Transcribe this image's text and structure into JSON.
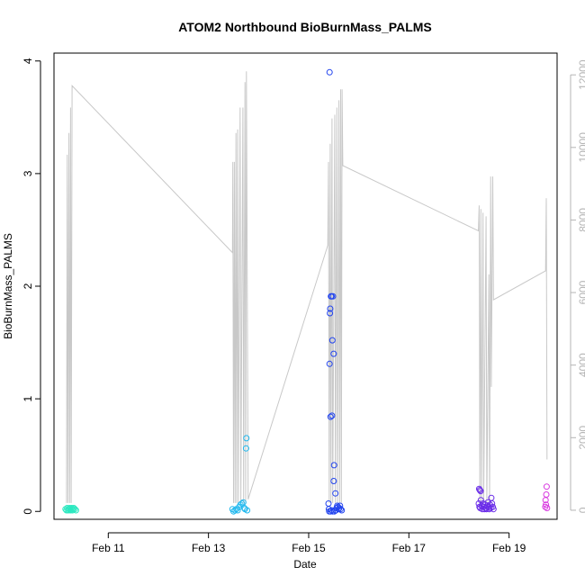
{
  "chart_data": {
    "type": "scatter",
    "title": "ATOM2 Northbound BioBurnMass_PALMS",
    "xlabel": "Date",
    "ylabel": "BioBurnMass_PALMS",
    "xlim": [
      "2017-02-09T22:00",
      "2017-02-19T23:00"
    ],
    "ylim": [
      -0.07,
      4.07
    ],
    "y2lim": [
      -250,
      12600
    ],
    "x_ticks": [
      {
        "value": "2017-02-11T00:00",
        "label": "Feb 11"
      },
      {
        "value": "2017-02-13T00:00",
        "label": "Feb 13"
      },
      {
        "value": "2017-02-15T00:00",
        "label": "Feb 15"
      },
      {
        "value": "2017-02-17T00:00",
        "label": "Feb 17"
      },
      {
        "value": "2017-02-19T00:00",
        "label": "Feb 19"
      }
    ],
    "y_ticks": [
      "0",
      "1",
      "2",
      "3",
      "4"
    ],
    "y2_ticks": [
      "0",
      "2000",
      "4000",
      "6000",
      "8000",
      "10000",
      "12000"
    ],
    "altitude_color": "#c8c8c8",
    "altitude_trace": [
      [
        "2017-02-10T04:00",
        200
      ],
      [
        "2017-02-10T04:20",
        9800
      ],
      [
        "2017-02-10T04:40",
        200
      ],
      [
        "2017-02-10T05:10",
        10400
      ],
      [
        "2017-02-10T05:30",
        200
      ],
      [
        "2017-02-10T05:55",
        11100
      ],
      [
        "2017-02-10T06:15",
        200
      ],
      [
        "2017-02-10T06:40",
        11700
      ],
      [
        "2017-02-13T11:30",
        7100
      ],
      [
        "2017-02-13T11:40",
        9600
      ],
      [
        "2017-02-13T12:00",
        200
      ],
      [
        "2017-02-13T12:25",
        9600
      ],
      [
        "2017-02-13T12:45",
        200
      ],
      [
        "2017-02-13T13:10",
        10400
      ],
      [
        "2017-02-13T13:30",
        200
      ],
      [
        "2017-02-13T14:00",
        10500
      ],
      [
        "2017-02-13T14:20",
        200
      ],
      [
        "2017-02-13T15:10",
        11100
      ],
      [
        "2017-02-13T15:30",
        200
      ],
      [
        "2017-02-13T16:30",
        11100
      ],
      [
        "2017-02-13T16:50",
        200
      ],
      [
        "2017-02-13T17:30",
        11800
      ],
      [
        "2017-02-13T17:50",
        200
      ],
      [
        "2017-02-13T18:10",
        12100
      ],
      [
        "2017-02-13T19:00",
        300
      ],
      [
        "2017-02-15T09:10",
        7300
      ],
      [
        "2017-02-15T09:30",
        9600
      ],
      [
        "2017-02-15T09:50",
        200
      ],
      [
        "2017-02-15T10:20",
        10100
      ],
      [
        "2017-02-15T10:40",
        200
      ],
      [
        "2017-02-15T11:10",
        10800
      ],
      [
        "2017-02-15T11:30",
        200
      ],
      [
        "2017-02-15T12:30",
        10900
      ],
      [
        "2017-02-15T12:50",
        200
      ],
      [
        "2017-02-15T13:30",
        11100
      ],
      [
        "2017-02-15T13:50",
        200
      ],
      [
        "2017-02-15T14:30",
        11300
      ],
      [
        "2017-02-15T14:50",
        200
      ],
      [
        "2017-02-15T15:20",
        11600
      ],
      [
        "2017-02-15T15:40",
        200
      ],
      [
        "2017-02-15T16:00",
        11600
      ],
      [
        "2017-02-15T16:20",
        9500
      ],
      [
        "2017-02-18T09:20",
        7700
      ],
      [
        "2017-02-18T09:40",
        8400
      ],
      [
        "2017-02-18T10:00",
        200
      ],
      [
        "2017-02-18T10:30",
        8300
      ],
      [
        "2017-02-18T10:50",
        200
      ],
      [
        "2017-02-18T11:30",
        8200
      ],
      [
        "2017-02-18T11:50",
        200
      ],
      [
        "2017-02-18T13:00",
        8100
      ],
      [
        "2017-02-18T13:20",
        200
      ],
      [
        "2017-02-18T14:20",
        6500
      ],
      [
        "2017-02-18T14:40",
        200
      ],
      [
        "2017-02-18T15:10",
        9200
      ],
      [
        "2017-02-18T15:30",
        3400
      ],
      [
        "2017-02-18T16:10",
        9200
      ],
      [
        "2017-02-18T16:30",
        5800
      ],
      [
        "2017-02-19T17:30",
        6600
      ],
      [
        "2017-02-19T17:50",
        8600
      ],
      [
        "2017-02-19T18:10",
        1400
      ]
    ],
    "points": [
      {
        "x": "2017-02-10T03:30",
        "y": 0.02,
        "color": "#2ce8c0"
      },
      {
        "x": "2017-02-10T04:00",
        "y": 0.01,
        "color": "#2ce8c0"
      },
      {
        "x": "2017-02-10T04:20",
        "y": 0.03,
        "color": "#2ce8c0"
      },
      {
        "x": "2017-02-10T04:50",
        "y": 0.01,
        "color": "#2ce8c0"
      },
      {
        "x": "2017-02-10T05:10",
        "y": 0.02,
        "color": "#2ce8c0"
      },
      {
        "x": "2017-02-10T05:30",
        "y": 0.03,
        "color": "#2ce8c0"
      },
      {
        "x": "2017-02-10T05:50",
        "y": 0.01,
        "color": "#2ce8c0"
      },
      {
        "x": "2017-02-10T06:10",
        "y": 0.02,
        "color": "#2ce8c0"
      },
      {
        "x": "2017-02-10T06:30",
        "y": 0.03,
        "color": "#2ce8c0"
      },
      {
        "x": "2017-02-10T06:50",
        "y": 0.01,
        "color": "#2ce8c0"
      },
      {
        "x": "2017-02-10T07:10",
        "y": 0.02,
        "color": "#2ce8c0"
      },
      {
        "x": "2017-02-10T07:30",
        "y": 0.03,
        "color": "#2ce8c0"
      },
      {
        "x": "2017-02-10T08:00",
        "y": 0.02,
        "color": "#2ce8c0"
      },
      {
        "x": "2017-02-10T08:30",
        "y": 0.01,
        "color": "#2ce8c0"
      },
      {
        "x": "2017-02-13T11:30",
        "y": 0.02,
        "color": "#20b8ee"
      },
      {
        "x": "2017-02-13T12:00",
        "y": 0.0,
        "color": "#20b8ee"
      },
      {
        "x": "2017-02-13T12:40",
        "y": 0.01,
        "color": "#20b8ee"
      },
      {
        "x": "2017-02-13T13:20",
        "y": 0.02,
        "color": "#20b8ee"
      },
      {
        "x": "2017-02-13T14:00",
        "y": 0.01,
        "color": "#20b8ee"
      },
      {
        "x": "2017-02-13T14:40",
        "y": 0.04,
        "color": "#20b8ee"
      },
      {
        "x": "2017-02-13T15:20",
        "y": 0.06,
        "color": "#20b8ee"
      },
      {
        "x": "2017-02-13T16:00",
        "y": 0.07,
        "color": "#20b8ee"
      },
      {
        "x": "2017-02-13T16:40",
        "y": 0.08,
        "color": "#20b8ee"
      },
      {
        "x": "2017-02-13T17:10",
        "y": 0.03,
        "color": "#20b8ee"
      },
      {
        "x": "2017-02-13T17:30",
        "y": 0.02,
        "color": "#20b8ee"
      },
      {
        "x": "2017-02-13T18:00",
        "y": 0.56,
        "color": "#20b8ee"
      },
      {
        "x": "2017-02-13T18:10",
        "y": 0.65,
        "color": "#20b8ee"
      },
      {
        "x": "2017-02-13T18:30",
        "y": 0.01,
        "color": "#20b8ee"
      },
      {
        "x": "2017-02-15T09:30",
        "y": 0.07,
        "color": "#2244ee"
      },
      {
        "x": "2017-02-15T09:40",
        "y": 0.02,
        "color": "#2244ee"
      },
      {
        "x": "2017-02-15T10:00",
        "y": 3.9,
        "color": "#2244ee"
      },
      {
        "x": "2017-02-15T10:00",
        "y": 1.31,
        "color": "#2244ee"
      },
      {
        "x": "2017-02-15T10:10",
        "y": 1.76,
        "color": "#2244ee"
      },
      {
        "x": "2017-02-15T10:20",
        "y": 1.8,
        "color": "#2244ee"
      },
      {
        "x": "2017-02-15T10:30",
        "y": 0.84,
        "color": "#2244ee"
      },
      {
        "x": "2017-02-15T10:40",
        "y": 1.91,
        "color": "#2244ee"
      },
      {
        "x": "2017-02-15T11:00",
        "y": 1.91,
        "color": "#2244ee"
      },
      {
        "x": "2017-02-15T11:10",
        "y": 0.85,
        "color": "#2244ee"
      },
      {
        "x": "2017-02-15T11:20",
        "y": 1.52,
        "color": "#2244ee"
      },
      {
        "x": "2017-02-15T11:40",
        "y": 1.91,
        "color": "#2244ee"
      },
      {
        "x": "2017-02-15T12:00",
        "y": 1.4,
        "color": "#2244ee"
      },
      {
        "x": "2017-02-15T12:00",
        "y": 0.27,
        "color": "#2244ee"
      },
      {
        "x": "2017-02-15T12:10",
        "y": 0.41,
        "color": "#2244ee"
      },
      {
        "x": "2017-02-15T12:50",
        "y": 0.16,
        "color": "#2244ee"
      },
      {
        "x": "2017-02-15T09:50",
        "y": 0.0,
        "color": "#2244ee"
      },
      {
        "x": "2017-02-15T10:30",
        "y": 0.0,
        "color": "#2244ee"
      },
      {
        "x": "2017-02-15T11:00",
        "y": 0.01,
        "color": "#2244ee"
      },
      {
        "x": "2017-02-15T11:30",
        "y": 0.0,
        "color": "#2244ee"
      },
      {
        "x": "2017-02-15T12:20",
        "y": 0.0,
        "color": "#2244ee"
      },
      {
        "x": "2017-02-15T13:00",
        "y": 0.01,
        "color": "#2244ee"
      },
      {
        "x": "2017-02-15T13:20",
        "y": 0.03,
        "color": "#2244ee"
      },
      {
        "x": "2017-02-15T13:40",
        "y": 0.05,
        "color": "#2244ee"
      },
      {
        "x": "2017-02-15T14:00",
        "y": 0.04,
        "color": "#2244ee"
      },
      {
        "x": "2017-02-15T14:20",
        "y": 0.02,
        "color": "#2244ee"
      },
      {
        "x": "2017-02-15T14:40",
        "y": 0.03,
        "color": "#2244ee"
      },
      {
        "x": "2017-02-15T15:00",
        "y": 0.05,
        "color": "#2244ee"
      },
      {
        "x": "2017-02-15T15:20",
        "y": 0.02,
        "color": "#2244ee"
      },
      {
        "x": "2017-02-15T15:50",
        "y": 0.01,
        "color": "#2244ee"
      },
      {
        "x": "2017-02-18T09:40",
        "y": 0.2,
        "color": "#6a2ce8"
      },
      {
        "x": "2017-02-18T10:00",
        "y": 0.19,
        "color": "#6a2ce8"
      },
      {
        "x": "2017-02-18T10:20",
        "y": 0.18,
        "color": "#6a2ce8"
      },
      {
        "x": "2017-02-18T09:30",
        "y": 0.07,
        "color": "#6a2ce8"
      },
      {
        "x": "2017-02-18T09:50",
        "y": 0.04,
        "color": "#6a2ce8"
      },
      {
        "x": "2017-02-18T10:10",
        "y": 0.03,
        "color": "#6a2ce8"
      },
      {
        "x": "2017-02-18T10:30",
        "y": 0.1,
        "color": "#6a2ce8"
      },
      {
        "x": "2017-02-18T10:50",
        "y": 0.05,
        "color": "#6a2ce8"
      },
      {
        "x": "2017-02-18T11:10",
        "y": 0.02,
        "color": "#6a2ce8"
      },
      {
        "x": "2017-02-18T11:30",
        "y": 0.07,
        "color": "#6a2ce8"
      },
      {
        "x": "2017-02-18T11:50",
        "y": 0.04,
        "color": "#6a2ce8"
      },
      {
        "x": "2017-02-18T12:10",
        "y": 0.02,
        "color": "#6a2ce8"
      },
      {
        "x": "2017-02-18T12:30",
        "y": 0.06,
        "color": "#6a2ce8"
      },
      {
        "x": "2017-02-18T12:50",
        "y": 0.03,
        "color": "#6a2ce8"
      },
      {
        "x": "2017-02-18T13:10",
        "y": 0.02,
        "color": "#6a2ce8"
      },
      {
        "x": "2017-02-18T13:30",
        "y": 0.05,
        "color": "#6a2ce8"
      },
      {
        "x": "2017-02-18T13:50",
        "y": 0.08,
        "color": "#6a2ce8"
      },
      {
        "x": "2017-02-18T14:10",
        "y": 0.04,
        "color": "#6a2ce8"
      },
      {
        "x": "2017-02-18T14:30",
        "y": 0.02,
        "color": "#6a2ce8"
      },
      {
        "x": "2017-02-18T14:50",
        "y": 0.06,
        "color": "#6a2ce8"
      },
      {
        "x": "2017-02-18T15:10",
        "y": 0.03,
        "color": "#6a2ce8"
      },
      {
        "x": "2017-02-18T15:30",
        "y": 0.12,
        "color": "#6a2ce8"
      },
      {
        "x": "2017-02-18T15:50",
        "y": 0.07,
        "color": "#6a2ce8"
      },
      {
        "x": "2017-02-18T16:10",
        "y": 0.04,
        "color": "#6a2ce8"
      },
      {
        "x": "2017-02-18T16:30",
        "y": 0.02,
        "color": "#6a2ce8"
      },
      {
        "x": "2017-02-19T17:20",
        "y": 0.04,
        "color": "#d838e0"
      },
      {
        "x": "2017-02-19T17:30",
        "y": 0.1,
        "color": "#d838e0"
      },
      {
        "x": "2017-02-19T17:40",
        "y": 0.06,
        "color": "#d838e0"
      },
      {
        "x": "2017-02-19T17:50",
        "y": 0.15,
        "color": "#d838e0"
      },
      {
        "x": "2017-02-19T18:00",
        "y": 0.22,
        "color": "#d838e0"
      },
      {
        "x": "2017-02-19T18:10",
        "y": 0.03,
        "color": "#d838e0"
      }
    ]
  }
}
